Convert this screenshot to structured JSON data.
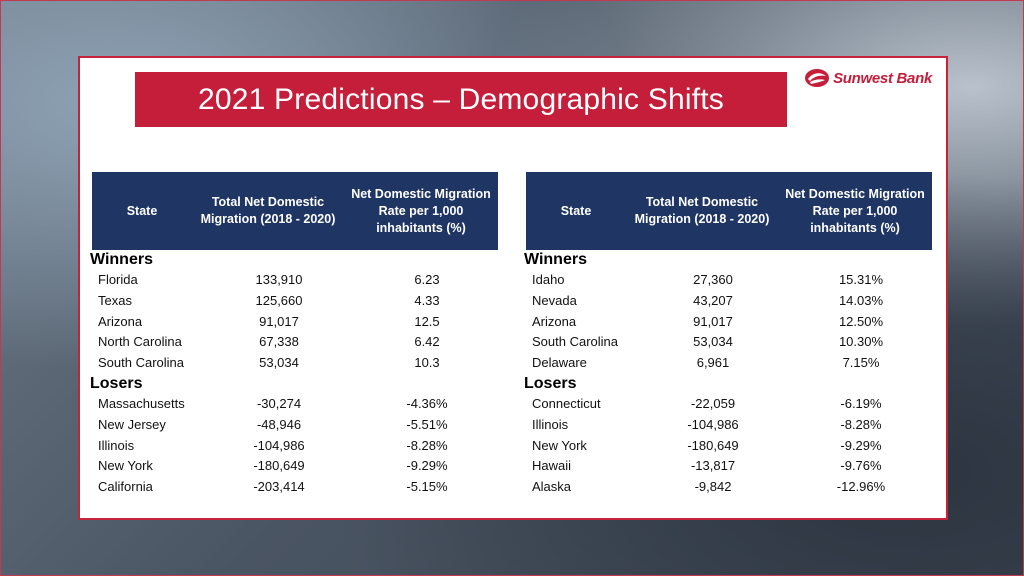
{
  "title": "2021 Predictions – Demographic Shifts",
  "brand": {
    "name": "Sunwest Bank",
    "color": "#c41e3a",
    "icon": "sunwest-swoosh-logo"
  },
  "colors": {
    "title_bg": "#c41e3a",
    "header_bg": "#1f3564"
  },
  "left_table": {
    "headers": [
      "State",
      "Total Net Domestic Migration (2018 - 2020)",
      "Net Domestic Migration Rate per 1,000 inhabitants (%)"
    ],
    "winners_label": "Winners",
    "losers_label": "Losers",
    "winners": [
      [
        "Florida",
        "133,910",
        "6.23"
      ],
      [
        "Texas",
        "125,660",
        "4.33"
      ],
      [
        "Arizona",
        "91,017",
        "12.5"
      ],
      [
        "North Carolina",
        "67,338",
        "6.42"
      ],
      [
        "South Carolina",
        "53,034",
        "10.3"
      ]
    ],
    "losers": [
      [
        "Massachusetts",
        "-30,274",
        "-4.36%"
      ],
      [
        "New Jersey",
        "-48,946",
        "-5.51%"
      ],
      [
        "Illinois",
        "-104,986",
        "-8.28%"
      ],
      [
        "New York",
        "-180,649",
        "-9.29%"
      ],
      [
        "California",
        "-203,414",
        "-5.15%"
      ]
    ]
  },
  "right_table": {
    "headers": [
      "State",
      "Total Net Domestic Migration (2018 - 2020)",
      "Net Domestic Migration Rate per 1,000 inhabitants (%)"
    ],
    "winners_label": "Winners",
    "losers_label": "Losers",
    "winners": [
      [
        "Idaho",
        "27,360",
        "15.31%"
      ],
      [
        "Nevada",
        "43,207",
        "14.03%"
      ],
      [
        "Arizona",
        "91,017",
        "12.50%"
      ],
      [
        "South Carolina",
        "53,034",
        "10.30%"
      ],
      [
        "Delaware",
        "6,961",
        "7.15%"
      ]
    ],
    "losers": [
      [
        "Connecticut",
        "-22,059",
        "-6.19%"
      ],
      [
        "Illinois",
        "-104,986",
        "-8.28%"
      ],
      [
        "New York",
        "-180,649",
        "-9.29%"
      ],
      [
        "Hawaii",
        "-13,817",
        "-9.76%"
      ],
      [
        "Alaska",
        "-9,842",
        "-12.96%"
      ]
    ]
  }
}
